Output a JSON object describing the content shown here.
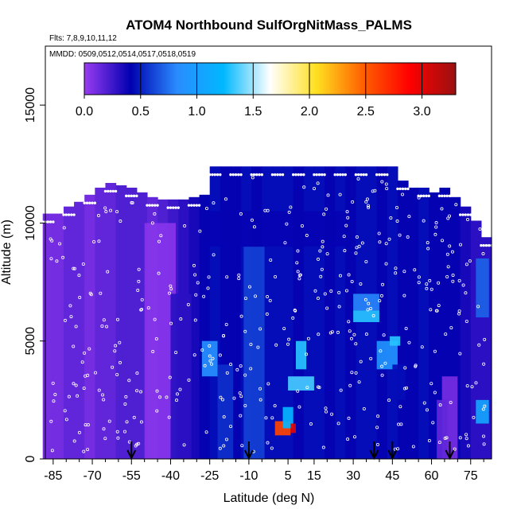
{
  "chart_data": {
    "type": "heatmap",
    "title": "ATOM4 Northbound SulfOrgNitMass_PALMS",
    "subtitle_flights": "Flts: 7,8,9,10,11,12",
    "subtitle_dates": "MMDD: 0509,0512,0514,0517,0518,0519",
    "xlabel": "Latitude (deg N)",
    "ylabel": "Altitude (m)",
    "xlim": [
      -88,
      83
    ],
    "ylim": [
      0,
      17500
    ],
    "x_ticks": [
      -85,
      -70,
      -55,
      -40,
      -25,
      -10,
      5,
      15,
      30,
      45,
      60,
      75
    ],
    "x_minor_ticks": [
      -80,
      -75,
      -65,
      -60,
      -50,
      -45,
      -35,
      -30,
      -20,
      -15,
      -5,
      0,
      10,
      20,
      25,
      35,
      40,
      50,
      55,
      65,
      70,
      80
    ],
    "y_ticks": [
      0,
      5000,
      10000,
      15000
    ],
    "colorbar": {
      "min": 0.0,
      "max": 3.3,
      "ticks": [
        0.0,
        0.5,
        1.0,
        1.5,
        2.0,
        2.5,
        3.0
      ],
      "colors": [
        "#9a3cf2",
        "#0000b0",
        "#2a8cff",
        "#00b8ff",
        "#ffffff",
        "#ffe020",
        "#ff6000",
        "#ff0000",
        "#9a1010"
      ]
    },
    "arrows_latitude": [
      -55,
      -10,
      38,
      45,
      67
    ],
    "columns": [
      {
        "lat": -87,
        "top": 10400,
        "value": 0.1
      },
      {
        "lat": -83,
        "top": 10400,
        "value": 0.1
      },
      {
        "lat": -79,
        "top": 10700,
        "value": 0.15
      },
      {
        "lat": -75,
        "top": 10900,
        "value": 0.15
      },
      {
        "lat": -71,
        "top": 11200,
        "value": 0.1
      },
      {
        "lat": -67,
        "top": 11500,
        "value": 0.15
      },
      {
        "lat": -63,
        "top": 11700,
        "value": 0.15
      },
      {
        "lat": -59,
        "top": 11600,
        "value": 0.2
      },
      {
        "lat": -55,
        "top": 11500,
        "value": 0.2
      },
      {
        "lat": -51,
        "top": 11300,
        "value": 0.2
      },
      {
        "lat": -47,
        "top": 11100,
        "value": 0.15
      },
      {
        "lat": -43,
        "top": 11000,
        "value": 0.2
      },
      {
        "lat": -39,
        "top": 11000,
        "value": 0.25
      },
      {
        "lat": -35,
        "top": 11000,
        "value": 0.3
      },
      {
        "lat": -31,
        "top": 11100,
        "value": 0.35
      },
      {
        "lat": -27,
        "top": 11200,
        "value": 0.4
      },
      {
        "lat": -23,
        "top": 12400,
        "value": 0.45
      },
      {
        "lat": -19,
        "top": 12400,
        "value": 0.4
      },
      {
        "lat": -15,
        "top": 12400,
        "value": 0.4
      },
      {
        "lat": -11,
        "top": 12400,
        "value": 0.45
      },
      {
        "lat": -7,
        "top": 12400,
        "value": 0.4
      },
      {
        "lat": -3,
        "top": 12400,
        "value": 0.45
      },
      {
        "lat": 1,
        "top": 12400,
        "value": 0.45
      },
      {
        "lat": 5,
        "top": 12400,
        "value": 0.45
      },
      {
        "lat": 9,
        "top": 12400,
        "value": 0.4
      },
      {
        "lat": 13,
        "top": 12400,
        "value": 0.45
      },
      {
        "lat": 17,
        "top": 12400,
        "value": 0.45
      },
      {
        "lat": 21,
        "top": 12400,
        "value": 0.4
      },
      {
        "lat": 25,
        "top": 12400,
        "value": 0.45
      },
      {
        "lat": 29,
        "top": 12400,
        "value": 0.4
      },
      {
        "lat": 33,
        "top": 12400,
        "value": 0.45
      },
      {
        "lat": 37,
        "top": 12400,
        "value": 0.45
      },
      {
        "lat": 41,
        "top": 12400,
        "value": 0.4
      },
      {
        "lat": 45,
        "top": 12400,
        "value": 0.45
      },
      {
        "lat": 49,
        "top": 11800,
        "value": 0.4
      },
      {
        "lat": 53,
        "top": 11500,
        "value": 0.4
      },
      {
        "lat": 57,
        "top": 11500,
        "value": 0.45
      },
      {
        "lat": 61,
        "top": 11300,
        "value": 0.4
      },
      {
        "lat": 65,
        "top": 11500,
        "value": 0.4
      },
      {
        "lat": 69,
        "top": 11100,
        "value": 0.4
      },
      {
        "lat": 73,
        "top": 10700,
        "value": 0.35
      },
      {
        "lat": 77,
        "top": 10100,
        "value": 0.3
      },
      {
        "lat": 81,
        "top": 9400,
        "value": 0.3
      }
    ],
    "patches": [
      {
        "lat": [
          -50,
          -38
        ],
        "alt": [
          0,
          10000
        ],
        "value": 0.05
      },
      {
        "lat": [
          -40,
          -32
        ],
        "alt": [
          0,
          7000
        ],
        "value": 0.3
      },
      {
        "lat": [
          -28,
          -22
        ],
        "alt": [
          3500,
          5000
        ],
        "value": 0.85
      },
      {
        "lat": [
          -22,
          -16
        ],
        "alt": [
          0,
          4000
        ],
        "value": 0.55
      },
      {
        "lat": [
          -12,
          -4
        ],
        "alt": [
          0,
          9000
        ],
        "value": 0.6
      },
      {
        "lat": [
          8,
          12
        ],
        "alt": [
          3800,
          5000
        ],
        "value": 1.3
      },
      {
        "lat": [
          5,
          15
        ],
        "alt": [
          2900,
          3500
        ],
        "value": 1.35
      },
      {
        "lat": [
          0,
          6
        ],
        "alt": [
          1000,
          1600
        ],
        "value": 2.6
      },
      {
        "lat": [
          3,
          7
        ],
        "alt": [
          1300,
          2200
        ],
        "value": 1.2
      },
      {
        "lat": [
          6,
          8
        ],
        "alt": [
          1100,
          1500
        ],
        "value": 3.0
      },
      {
        "lat": [
          30,
          40
        ],
        "alt": [
          5800,
          6300
        ],
        "value": 1.3
      },
      {
        "lat": [
          30,
          40
        ],
        "alt": [
          6300,
          7000
        ],
        "value": 0.8
      },
      {
        "lat": [
          39,
          47
        ],
        "alt": [
          3800,
          5000
        ],
        "value": 0.9
      },
      {
        "lat": [
          44,
          48
        ],
        "alt": [
          4800,
          5200
        ],
        "value": 1.3
      },
      {
        "lat": [
          45,
          50
        ],
        "alt": [
          2500,
          4000
        ],
        "value": 0.45
      },
      {
        "lat": [
          64,
          70
        ],
        "alt": [
          0,
          3500
        ],
        "value": 0.1
      },
      {
        "lat": [
          62,
          66
        ],
        "alt": [
          0,
          2500
        ],
        "value": 0.15
      },
      {
        "lat": [
          77,
          82
        ],
        "alt": [
          1500,
          2500
        ],
        "value": 1.05
      },
      {
        "lat": [
          77,
          82
        ],
        "alt": [
          6000,
          8500
        ],
        "value": 0.7
      },
      {
        "lat": [
          -25,
          30
        ],
        "alt": [
          9000,
          10500
        ],
        "value": 0.4
      }
    ]
  }
}
